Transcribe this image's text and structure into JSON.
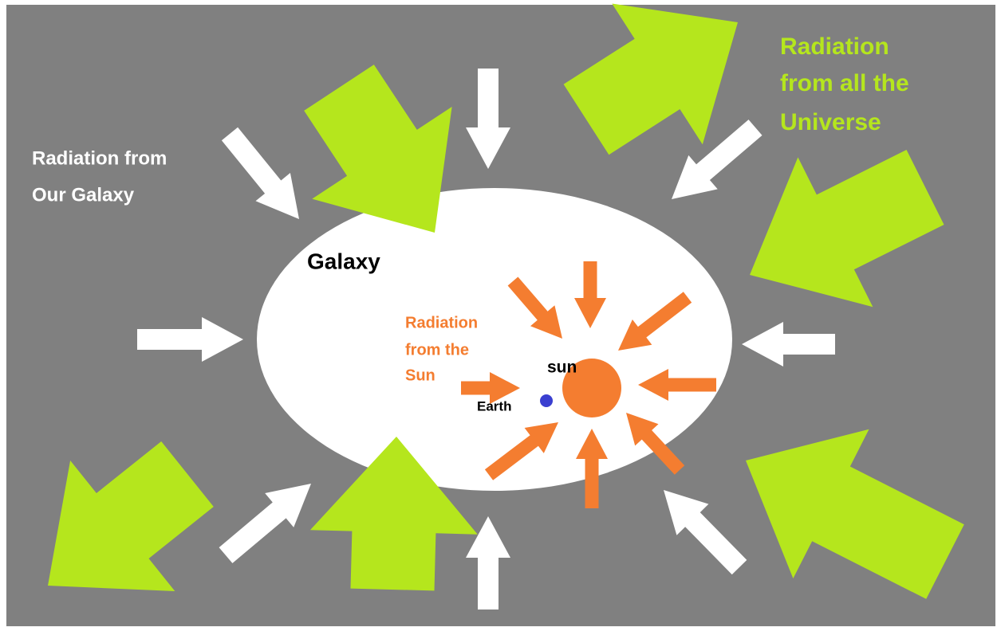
{
  "labels": {
    "universe": [
      "Radiation",
      "from all the",
      "Universe"
    ],
    "our_galaxy": [
      "Radiation from",
      "Our Galaxy"
    ],
    "galaxy": "Galaxy",
    "sun_radiation": [
      "Radiation",
      "from the",
      "Sun"
    ],
    "sun": "sun",
    "earth": "Earth"
  }
}
